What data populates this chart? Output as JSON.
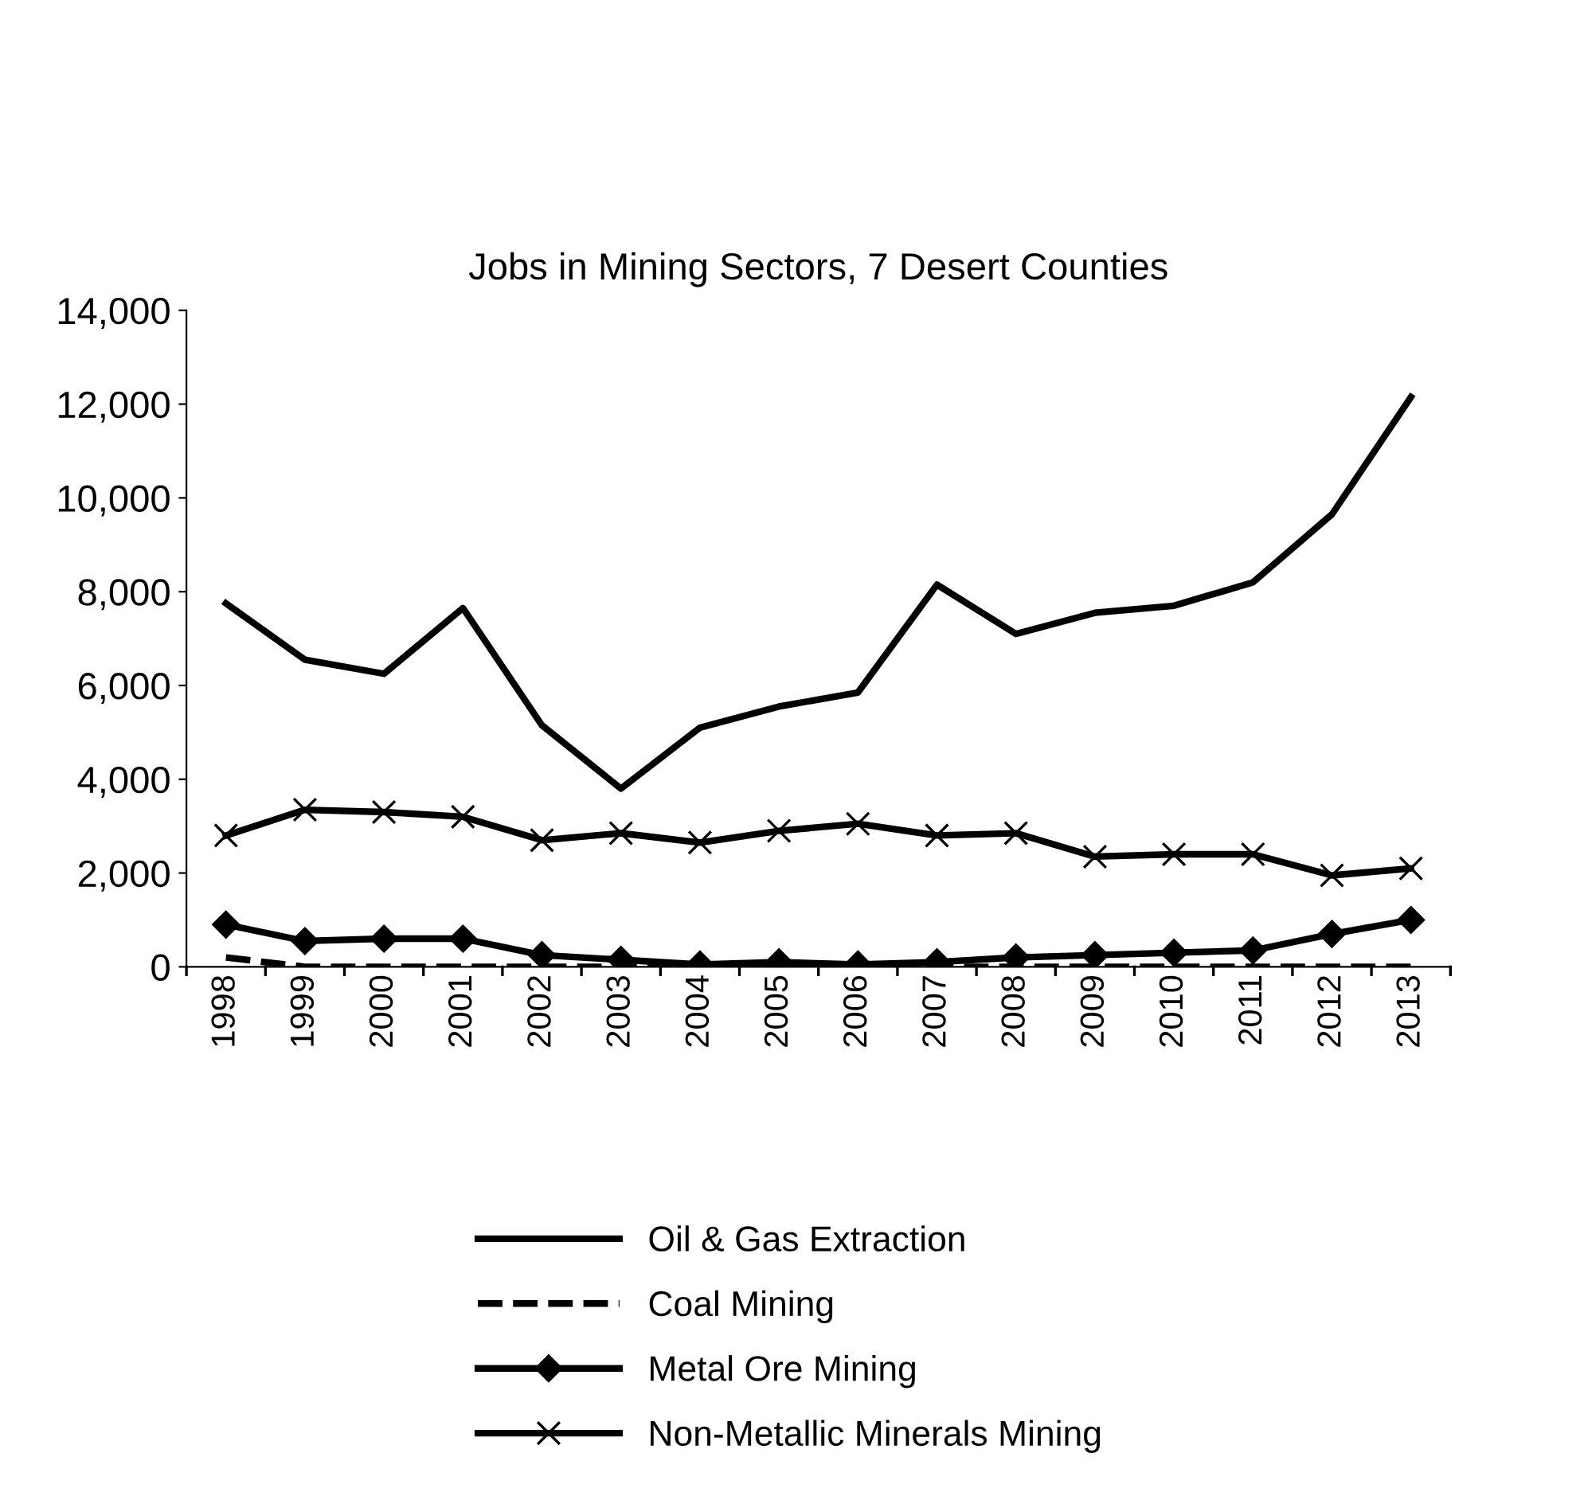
{
  "chart_data": {
    "type": "line",
    "title": "Jobs in Mining Sectors, 7 Desert Counties",
    "categories": [
      "1998",
      "1999",
      "2000",
      "2001",
      "2002",
      "2003",
      "2004",
      "2005",
      "2006",
      "2007",
      "2008",
      "2009",
      "2010",
      "2011",
      "2012",
      "2013"
    ],
    "series": [
      {
        "name": "Oil & Gas Extraction",
        "color": "#000000",
        "marker": "none",
        "line_style": "solid",
        "values": [
          7750,
          6550,
          6250,
          7650,
          5150,
          3800,
          5100,
          5550,
          5850,
          8150,
          7100,
          7550,
          7700,
          8200,
          9650,
          12150
        ]
      },
      {
        "name": "Coal Mining",
        "color": "#000000",
        "marker": "none",
        "line_style": "dashed",
        "values": [
          200,
          0,
          0,
          0,
          0,
          0,
          0,
          0,
          0,
          0,
          0,
          0,
          0,
          0,
          0,
          0
        ]
      },
      {
        "name": "Metal Ore Mining",
        "color": "#000000",
        "marker": "diamond",
        "line_style": "solid",
        "values": [
          900,
          550,
          600,
          600,
          250,
          150,
          50,
          100,
          50,
          100,
          200,
          250,
          300,
          350,
          700,
          1000
        ]
      },
      {
        "name": "Non-Metallic Minerals Mining",
        "color": "#000000",
        "marker": "cross",
        "line_style": "solid",
        "values": [
          2800,
          3350,
          3300,
          3200,
          2700,
          2850,
          2650,
          2900,
          3050,
          2800,
          2850,
          2350,
          2400,
          2400,
          1950,
          2100
        ]
      }
    ],
    "ylim": [
      0,
      14000
    ],
    "yticks": [
      {
        "value": 0,
        "label": "0"
      },
      {
        "value": 2000,
        "label": "2,000"
      },
      {
        "value": 4000,
        "label": "4,000"
      },
      {
        "value": 6000,
        "label": "6,000"
      },
      {
        "value": 8000,
        "label": "8,000"
      },
      {
        "value": 10000,
        "label": "10,000"
      },
      {
        "value": 12000,
        "label": "12,000"
      },
      {
        "value": 14000,
        "label": "14,000"
      }
    ],
    "grid": false,
    "legend": "bottom"
  }
}
